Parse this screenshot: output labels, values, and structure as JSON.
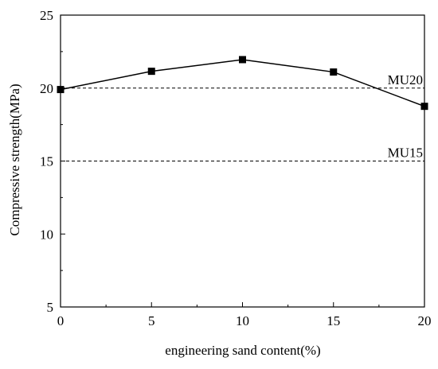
{
  "chart_data": {
    "type": "line",
    "title": "",
    "xlabel": "engineering sand content(%)",
    "ylabel": "Compressive strength(MPa)",
    "xlim": [
      0,
      20
    ],
    "ylim": [
      5,
      25
    ],
    "x_ticks": [
      0,
      5,
      10,
      15,
      20
    ],
    "y_ticks": [
      5,
      10,
      15,
      20,
      25
    ],
    "grid": false,
    "legend": "none",
    "marker": "square",
    "series": [
      {
        "x": [
          0,
          5,
          10,
          15,
          20
        ],
        "y": [
          19.9,
          21.15,
          21.95,
          21.1,
          18.75
        ],
        "color": "#000000"
      }
    ],
    "reference_lines": [
      {
        "label": "MU20",
        "y": 20,
        "style": "dashed"
      },
      {
        "label": "MU15",
        "y": 15,
        "style": "dashed"
      }
    ]
  }
}
